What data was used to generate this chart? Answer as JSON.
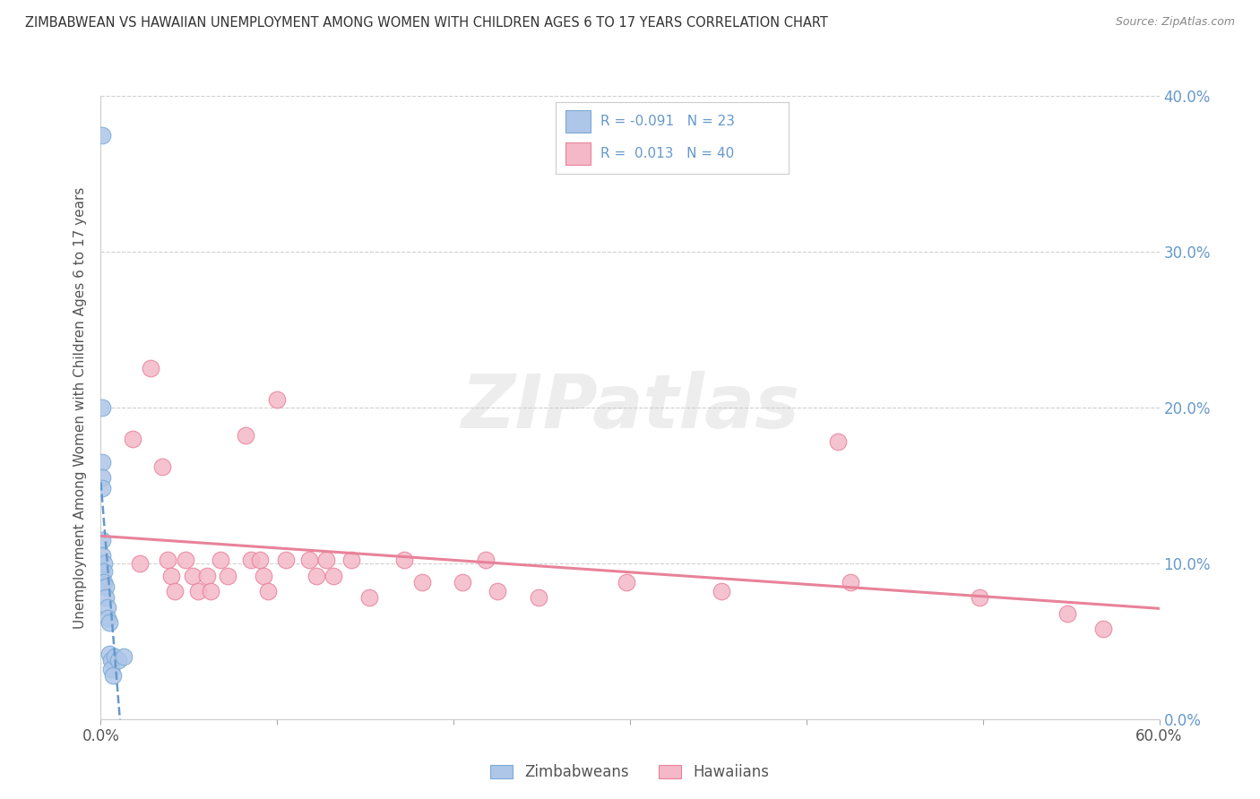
{
  "title": "ZIMBABWEAN VS HAWAIIAN UNEMPLOYMENT AMONG WOMEN WITH CHILDREN AGES 6 TO 17 YEARS CORRELATION CHART",
  "source": "Source: ZipAtlas.com",
  "ylabel": "Unemployment Among Women with Children Ages 6 to 17 years",
  "xlim": [
    0.0,
    0.6
  ],
  "ylim": [
    0.0,
    0.4
  ],
  "xticks": [
    0.0,
    0.1,
    0.2,
    0.3,
    0.4,
    0.5,
    0.6
  ],
  "xtick_labels": [
    "0.0%",
    "",
    "",
    "",
    "",
    "",
    "60.0%"
  ],
  "yticks": [
    0.0,
    0.1,
    0.2,
    0.3,
    0.4
  ],
  "ytick_labels_right": [
    "0.0%",
    "10.0%",
    "20.0%",
    "30.0%",
    "40.0%"
  ],
  "legend_r_zim": "-0.091",
  "legend_n_zim": "23",
  "legend_r_haw": "0.013",
  "legend_n_haw": "40",
  "zim_color": "#aec6e8",
  "haw_color": "#f4b8c8",
  "zim_edge": "#7aaad4",
  "haw_edge": "#e8829a",
  "trendline_zim_color": "#6699cc",
  "trendline_haw_color": "#e8829a",
  "watermark": "ZIPatlas",
  "background_color": "#ffffff",
  "grid_color": "#d0d0d0",
  "label_color": "#555555",
  "right_label_color": "#6699cc",
  "zim_x": [
    0.001,
    0.001,
    0.001,
    0.001,
    0.001,
    0.001,
    0.001,
    0.001,
    0.002,
    0.002,
    0.002,
    0.003,
    0.003,
    0.004,
    0.004,
    0.005,
    0.005,
    0.006,
    0.006,
    0.007,
    0.008,
    0.01,
    0.013
  ],
  "zim_y": [
    0.375,
    0.2,
    0.165,
    0.155,
    0.148,
    0.115,
    0.105,
    0.095,
    0.1,
    0.095,
    0.088,
    0.085,
    0.078,
    0.072,
    0.065,
    0.062,
    0.042,
    0.038,
    0.032,
    0.028,
    0.04,
    0.038,
    0.04
  ],
  "haw_x": [
    0.018,
    0.022,
    0.028,
    0.035,
    0.038,
    0.04,
    0.042,
    0.048,
    0.052,
    0.055,
    0.06,
    0.062,
    0.068,
    0.072,
    0.082,
    0.085,
    0.09,
    0.092,
    0.095,
    0.1,
    0.105,
    0.118,
    0.122,
    0.128,
    0.132,
    0.142,
    0.152,
    0.172,
    0.182,
    0.205,
    0.218,
    0.225,
    0.248,
    0.298,
    0.352,
    0.418,
    0.425,
    0.498,
    0.548,
    0.568
  ],
  "haw_y": [
    0.18,
    0.1,
    0.225,
    0.162,
    0.102,
    0.092,
    0.082,
    0.102,
    0.092,
    0.082,
    0.092,
    0.082,
    0.102,
    0.092,
    0.182,
    0.102,
    0.102,
    0.092,
    0.082,
    0.205,
    0.102,
    0.102,
    0.092,
    0.102,
    0.092,
    0.102,
    0.078,
    0.102,
    0.088,
    0.088,
    0.102,
    0.082,
    0.078,
    0.088,
    0.082,
    0.178,
    0.088,
    0.078,
    0.068,
    0.058
  ]
}
